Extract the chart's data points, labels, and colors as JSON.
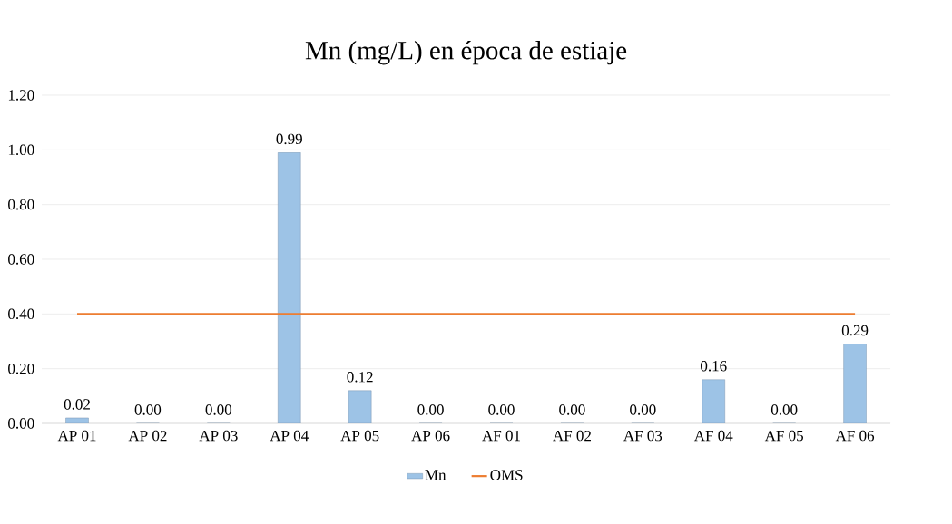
{
  "chart_data": {
    "type": "bar",
    "title": "Mn (mg/L) en época de estiaje",
    "categories": [
      "AP 01",
      "AP 02",
      "AP 03",
      "AP 04",
      "AP 05",
      "AP 06",
      "AF 01",
      "AF 02",
      "AF 03",
      "AF 04",
      "AF 05",
      "AF 06"
    ],
    "series": [
      {
        "name": "Mn",
        "color": "#9dc3e6",
        "values": [
          0.02,
          0.0,
          0.0,
          0.99,
          0.12,
          0.0,
          0.0,
          0.0,
          0.0,
          0.16,
          0.0,
          0.29
        ],
        "value_labels": [
          "0.02",
          "0.00",
          "0.00",
          "0.99",
          "0.12",
          "0.00",
          "0.00",
          "0.00",
          "0.00",
          "0.16",
          "0.00",
          "0.29"
        ]
      },
      {
        "name": "OMS",
        "type": "line",
        "color": "#ed7d31",
        "values": [
          0.4,
          0.4,
          0.4,
          0.4,
          0.4,
          0.4,
          0.4,
          0.4,
          0.4,
          0.4,
          0.4,
          0.4
        ]
      }
    ],
    "ylim": [
      0,
      1.2
    ],
    "yticks": [
      {
        "value": 0,
        "label": "0.00"
      },
      {
        "value": 0.2,
        "label": "0.20"
      },
      {
        "value": 0.4,
        "label": "0.40"
      },
      {
        "value": 0.6,
        "label": "0.60"
      },
      {
        "value": 0.8,
        "label": "0.80"
      },
      {
        "value": 1.0,
        "label": "1.00"
      },
      {
        "value": 1.2,
        "label": "1.20"
      }
    ],
    "grid": "y",
    "legend": "bottom"
  }
}
